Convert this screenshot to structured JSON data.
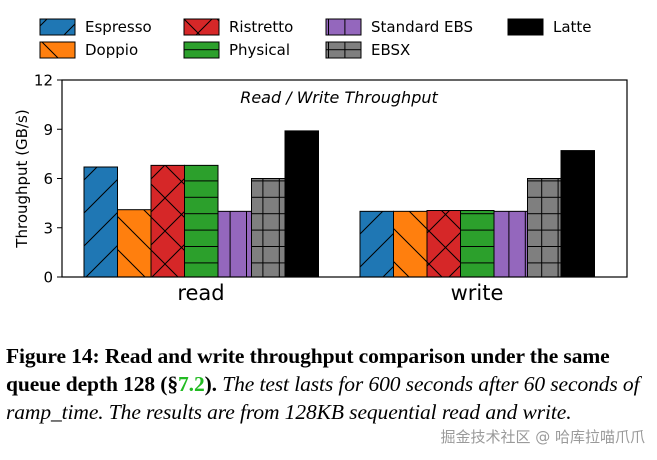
{
  "chart_data": {
    "type": "bar",
    "title": "Read / Write Throughput",
    "ylabel": "Throughput (GB/s)",
    "xlabel": "",
    "categories": [
      "read",
      "write"
    ],
    "ylim": [
      0,
      12
    ],
    "yticks": [
      "0",
      "3",
      "6",
      "9",
      "12"
    ],
    "grid": false,
    "legend_position": "top",
    "series": [
      {
        "name": "Espresso",
        "values": [
          6.7,
          4.0
        ],
        "color": "#1f77b4",
        "hatch": "slash"
      },
      {
        "name": "Doppio",
        "values": [
          4.1,
          4.0
        ],
        "color": "#ff7f0e",
        "hatch": "backslash"
      },
      {
        "name": "Ristretto",
        "values": [
          6.8,
          4.05
        ],
        "color": "#d62728",
        "hatch": "cross"
      },
      {
        "name": "Physical",
        "values": [
          6.8,
          4.05
        ],
        "color": "#2ca02c",
        "hatch": "horizontal"
      },
      {
        "name": "Standard EBS",
        "values": [
          4.0,
          4.0
        ],
        "color": "#9467bd",
        "hatch": "vertical"
      },
      {
        "name": "EBSX",
        "values": [
          6.0,
          6.0
        ],
        "color": "#7f7f7f",
        "hatch": "grid"
      },
      {
        "name": "Latte",
        "values": [
          8.9,
          7.7
        ],
        "color": "#000000",
        "hatch": "none"
      }
    ]
  },
  "caption": {
    "label": "Figure 14:",
    "bold_text": "Read and write throughput comparison under the same queue depth 128 (§",
    "ref": "7.2",
    "bold_close": ").",
    "italic_text": "The test lasts for 600 seconds after 60 seconds of ramp_time. The results are from 128KB sequential read and write."
  },
  "watermark": "掘金技术社区 @ 哈库拉喵爪爪"
}
